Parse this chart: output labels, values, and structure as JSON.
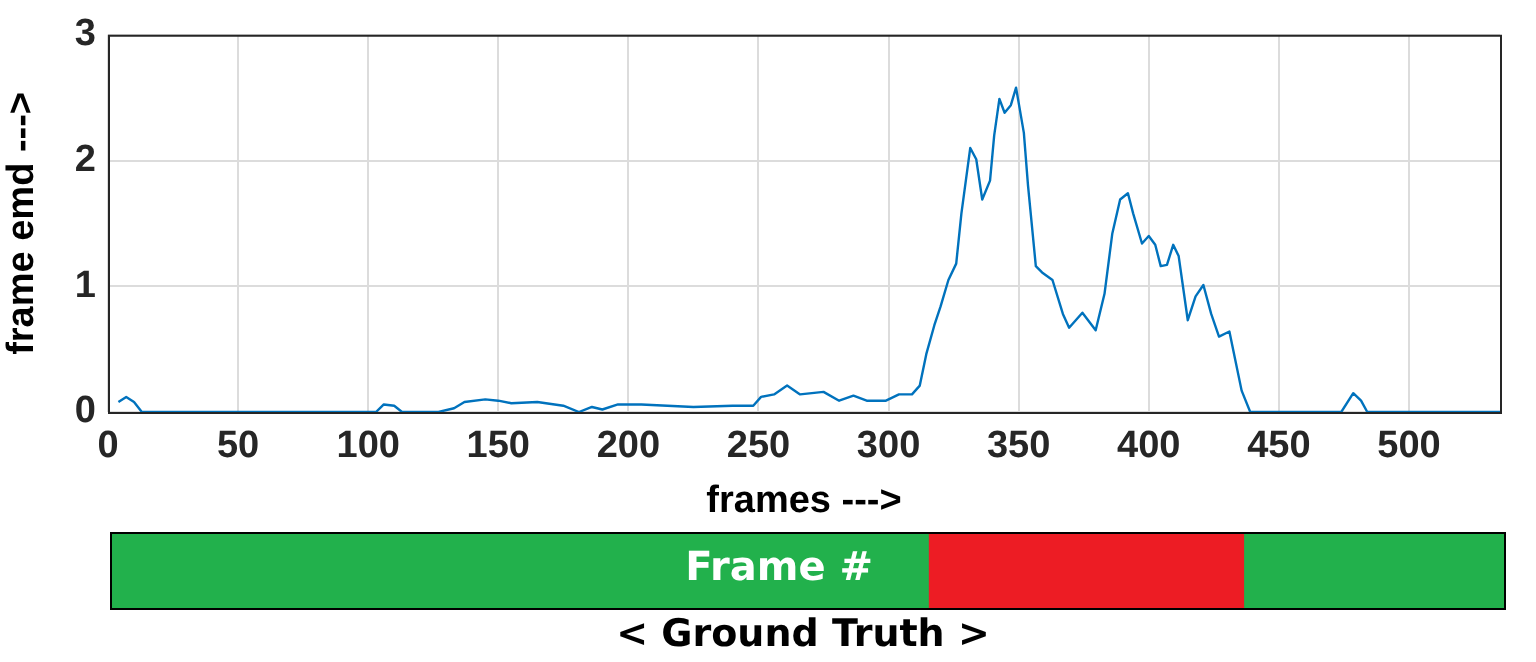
{
  "chart_data": [
    {
      "type": "line",
      "xlabel": "frames --->",
      "ylabel": "frame emd --->",
      "series": [
        {
          "color": "#0072bd",
          "x": [
            4,
            7,
            10,
            13,
            100,
            103,
            106,
            110,
            113,
            127,
            133,
            137,
            145,
            150,
            155,
            165,
            175,
            181,
            186,
            190,
            196,
            205,
            215,
            225,
            240,
            248,
            251,
            256,
            261,
            266,
            275,
            281,
            286.5,
            291.6,
            299,
            304,
            309,
            312,
            314.5,
            317.6,
            320,
            323,
            326,
            328,
            331.4,
            333.7,
            336,
            339,
            340.6,
            342.6,
            344.6,
            347,
            349,
            352,
            353.6,
            356.6,
            359,
            363,
            367,
            369.4,
            374.5,
            379.6,
            383,
            386,
            389,
            392,
            394,
            397.4,
            400,
            402.5,
            404.6,
            407,
            409.4,
            411.5,
            415,
            418,
            421,
            424,
            427,
            431,
            433,
            435.7,
            439,
            474,
            478.6,
            481.6,
            484,
            535
          ],
          "values": [
            0.08,
            0.12,
            0.08,
            0,
            0,
            0,
            0.06,
            0.05,
            0,
            0,
            0.03,
            0.08,
            0.1,
            0.09,
            0.07,
            0.08,
            0.05,
            0,
            0.04,
            0.02,
            0.06,
            0.06,
            0.05,
            0.04,
            0.05,
            0.05,
            0.12,
            0.14,
            0.21,
            0.14,
            0.16,
            0.09,
            0.13,
            0.09,
            0.09,
            0.14,
            0.14,
            0.21,
            0.46,
            0.69,
            0.84,
            1.05,
            1.18,
            1.58,
            2.1,
            2.01,
            1.69,
            1.84,
            2.2,
            2.49,
            2.38,
            2.44,
            2.58,
            2.22,
            1.8,
            1.16,
            1.11,
            1.05,
            0.78,
            0.67,
            0.79,
            0.65,
            0.94,
            1.42,
            1.69,
            1.74,
            1.58,
            1.34,
            1.4,
            1.33,
            1.16,
            1.17,
            1.33,
            1.24,
            0.73,
            0.92,
            1.01,
            0.78,
            0.6,
            0.64,
            0.44,
            0.17,
            0,
            0,
            0.15,
            0.09,
            0,
            0
          ]
        }
      ],
      "xlim": [
        0,
        535
      ],
      "xticks": [
        0,
        50,
        100,
        150,
        200,
        250,
        300,
        350,
        400,
        450,
        500
      ],
      "ylim": [
        0,
        3
      ],
      "yticks": [
        0,
        1,
        2,
        3
      ],
      "grid": true,
      "marker": "none",
      "line_style": "solid"
    },
    {
      "type": "bar",
      "orientation": "horizontal",
      "stacked": true,
      "xlabel": "< Ground Truth >",
      "annotations": [
        "Frame #"
      ],
      "categories": [
        null
      ],
      "series": [
        {
          "color": "#22b14c",
          "values": [
            314
          ]
        },
        {
          "color": "#ed1c24",
          "values": [
            121
          ]
        },
        {
          "color": "#22b14c",
          "values": [
            100
          ]
        }
      ],
      "xlim": [
        0,
        535
      ],
      "tick_labels": false
    }
  ]
}
